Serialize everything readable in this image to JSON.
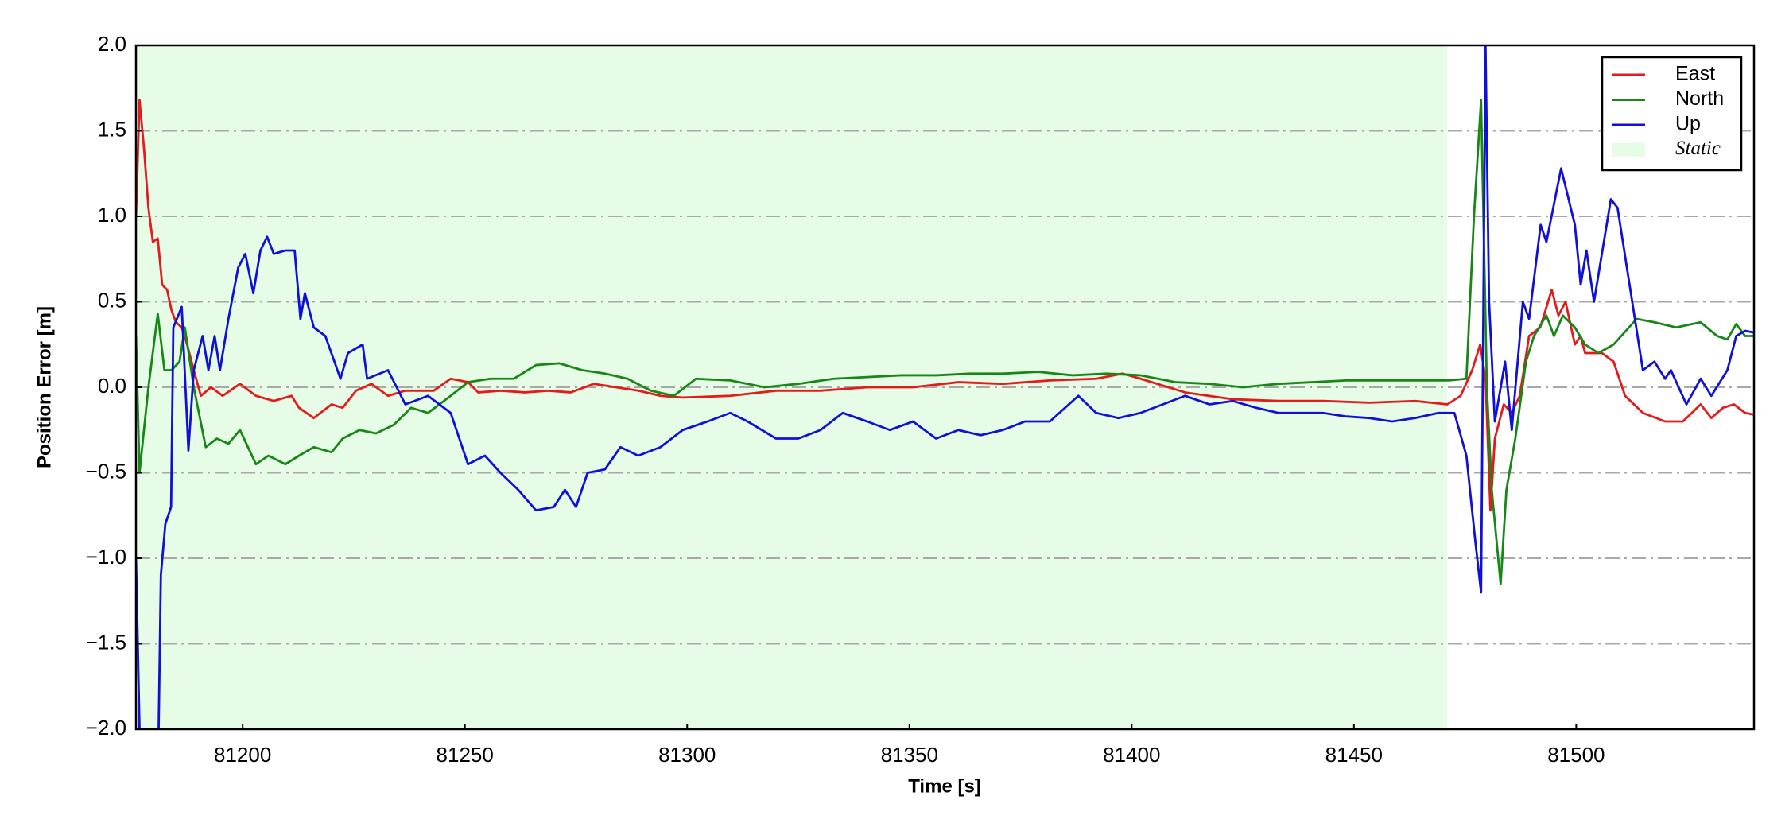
{
  "chart_data": {
    "type": "line",
    "xlabel": "Time [s]",
    "ylabel": "Position Error [m]",
    "xlim": [
      81176,
      81540
    ],
    "ylim": [
      -2,
      2
    ],
    "xticks": [
      81200,
      81250,
      81300,
      81350,
      81400,
      81450,
      81500
    ],
    "yticks": [
      {
        "value": -2,
        "label": "−2.0"
      },
      {
        "value": -1.5,
        "label": "−1.5"
      },
      {
        "value": -1,
        "label": "−1.0"
      },
      {
        "value": -0.5,
        "label": "−0.5"
      },
      {
        "value": 0,
        "label": "0.0"
      },
      0.5,
      {
        "value": 1,
        "label": "1.0"
      },
      1.5,
      {
        "value": 2,
        "label": "2.0"
      }
    ],
    "grid": true,
    "legend": "upper right",
    "shaded_region": {
      "name": "Static",
      "start": 81176,
      "end": 81471,
      "color": "#e6fce6"
    },
    "series": [
      {
        "name": "East",
        "color": "#e41a1c",
        "x": [
          81176,
          81176.8,
          81177.8,
          81178.8,
          81179.8,
          81180.9,
          81181.9,
          81183,
          81184,
          81185,
          81186.3,
          81187.5,
          81189,
          81190.6,
          81192.9,
          81195.5,
          81199.4,
          81203,
          81207,
          81211,
          81212.7,
          81216,
          81220,
          81222.5,
          81225.5,
          81229,
          81232.7,
          81236.6,
          81243,
          81246.8,
          81250.7,
          81253,
          81258,
          81263.5,
          81268.7,
          81273.8,
          81279,
          81284,
          81289,
          81294,
          81299,
          81309.7,
          81320,
          81330,
          81340.5,
          81350.8,
          81361,
          81371,
          81381.6,
          81392,
          81398,
          81402,
          81412,
          81422.7,
          81433,
          81443,
          81453.5,
          81463.7,
          81471,
          81474,
          81476.6,
          81478.4,
          81479.6,
          81480.7,
          81481.7,
          81483.7,
          81485.5,
          81487.3,
          81489.4,
          81491.9,
          81494.5,
          81496,
          81497.6,
          81499.7,
          81501,
          81502,
          81505.8,
          81508.4,
          81511,
          81515,
          81520,
          81524,
          81528,
          81530.4,
          81533,
          81535.5,
          81538,
          81540
        ],
        "values": [
          1.0,
          1.68,
          1.4,
          1.05,
          0.85,
          0.87,
          0.6,
          0.57,
          0.45,
          0.38,
          0.35,
          0.25,
          0.1,
          -0.05,
          0.0,
          -0.05,
          0.02,
          -0.05,
          -0.08,
          -0.05,
          -0.12,
          -0.18,
          -0.1,
          -0.12,
          -0.02,
          0.02,
          -0.05,
          -0.02,
          -0.02,
          0.05,
          0.03,
          -0.03,
          -0.02,
          -0.03,
          -0.02,
          -0.03,
          0.02,
          0.0,
          -0.02,
          -0.05,
          -0.06,
          -0.05,
          -0.02,
          -0.02,
          0.0,
          0.0,
          0.03,
          0.02,
          0.04,
          0.05,
          0.08,
          0.05,
          -0.03,
          -0.07,
          -0.08,
          -0.08,
          -0.09,
          -0.08,
          -0.1,
          -0.05,
          0.1,
          0.25,
          0.05,
          -0.72,
          -0.3,
          -0.1,
          -0.15,
          -0.05,
          0.3,
          0.35,
          0.57,
          0.42,
          0.5,
          0.25,
          0.3,
          0.2,
          0.2,
          0.15,
          -0.05,
          -0.15,
          -0.2,
          -0.2,
          -0.1,
          -0.18,
          -0.12,
          -0.1,
          -0.15,
          -0.16
        ]
      },
      {
        "name": "North",
        "color": "#188718",
        "x": [
          81176,
          81176.8,
          81178.8,
          81180.9,
          81182.4,
          81184,
          81185.8,
          81187,
          81189,
          81191.7,
          81194.2,
          81196.8,
          81199.4,
          81203,
          81205.8,
          81209.6,
          81212.7,
          81216,
          81220,
          81222.5,
          81226.3,
          81230,
          81234,
          81237.9,
          81241.7,
          81246.8,
          81250.7,
          81255.8,
          81261,
          81266,
          81271.2,
          81276.4,
          81281.5,
          81286.6,
          81291.8,
          81297,
          81302,
          81309.7,
          81317.4,
          81325,
          81333,
          81340.5,
          81348,
          81356,
          81363.6,
          81371,
          81379,
          81386.7,
          81394.4,
          81402,
          81409.8,
          81417.5,
          81425,
          81433,
          81440.6,
          81448.3,
          81456,
          81463.7,
          81471.4,
          81475.3,
          81477,
          81478.6,
          81479.9,
          81481,
          81483,
          81484.3,
          81486.3,
          81488.7,
          81490.5,
          81493.3,
          81495,
          81497,
          81499.7,
          81502,
          81505,
          81508.4,
          81513.6,
          81517.6,
          81522.5,
          81528,
          81531.7,
          81534,
          81536,
          81538,
          81540
        ],
        "values": [
          0.3,
          -0.5,
          0.0,
          0.43,
          0.1,
          0.1,
          0.15,
          0.35,
          0.0,
          -0.35,
          -0.3,
          -0.33,
          -0.25,
          -0.45,
          -0.4,
          -0.45,
          -0.4,
          -0.35,
          -0.38,
          -0.3,
          -0.25,
          -0.27,
          -0.22,
          -0.12,
          -0.15,
          -0.05,
          0.03,
          0.05,
          0.05,
          0.13,
          0.14,
          0.1,
          0.08,
          0.05,
          -0.02,
          -0.05,
          0.05,
          0.04,
          0.0,
          0.02,
          0.05,
          0.06,
          0.07,
          0.07,
          0.08,
          0.08,
          0.09,
          0.07,
          0.08,
          0.07,
          0.03,
          0.02,
          0.0,
          0.02,
          0.03,
          0.04,
          0.04,
          0.04,
          0.04,
          0.05,
          1.0,
          1.68,
          0.0,
          -0.6,
          -1.15,
          -0.6,
          -0.3,
          0.15,
          0.3,
          0.42,
          0.3,
          0.42,
          0.35,
          0.25,
          0.2,
          0.25,
          0.4,
          0.38,
          0.35,
          0.38,
          0.3,
          0.28,
          0.37,
          0.3,
          0.3
        ]
      },
      {
        "name": "Up",
        "color": "#1010d8",
        "x": [
          81176,
          81176.8,
          81178.3,
          81180.1,
          81181.1,
          81181.6,
          81182.6,
          81183.9,
          81184.4,
          81186.3,
          81187.8,
          81189,
          81191,
          81192.3,
          81193.7,
          81194.9,
          81196.8,
          81199,
          81200.6,
          81202.4,
          81204,
          81205.5,
          81207,
          81209.6,
          81211.7,
          81213,
          81214,
          81216,
          81218.6,
          81222,
          81223.7,
          81227,
          81228,
          81232.7,
          81236.6,
          81241.7,
          81246.8,
          81250.7,
          81254.5,
          81258,
          81262,
          81266,
          81270,
          81272.5,
          81275,
          81277.6,
          81281.5,
          81285,
          81289,
          81294,
          81299,
          81304.6,
          81309.7,
          81313.6,
          81320,
          81325,
          81330,
          81335,
          81340.5,
          81345.6,
          81350.8,
          81356,
          81361,
          81366,
          81371,
          81376,
          81381.6,
          81388,
          81392,
          81397,
          81402,
          81407,
          81412,
          81417.5,
          81422.7,
          81428,
          81433,
          81438,
          81443,
          81448,
          81453.5,
          81458.6,
          81463.7,
          81469,
          81472.6,
          81475.3,
          81477.3,
          81478.6,
          81479.6,
          81480.4,
          81481.7,
          81484,
          81485.5,
          81488,
          81489.4,
          81492,
          81493.3,
          81496.6,
          81499.7,
          81501,
          81502.3,
          81504,
          81507.8,
          81509.3,
          81512.6,
          81515,
          81517.6,
          81520,
          81521.3,
          81524.8,
          81528,
          81530.4,
          81534,
          81536,
          81538,
          81540
        ],
        "values": [
          -1.0,
          -2.0,
          -2.0,
          -2.0,
          -2.0,
          -1.1,
          -0.8,
          -0.7,
          0.35,
          0.47,
          -0.37,
          0.1,
          0.3,
          0.1,
          0.3,
          0.1,
          0.4,
          0.7,
          0.78,
          0.55,
          0.8,
          0.88,
          0.78,
          0.8,
          0.8,
          0.4,
          0.55,
          0.35,
          0.3,
          0.05,
          0.2,
          0.25,
          0.05,
          0.1,
          -0.1,
          -0.05,
          -0.15,
          -0.45,
          -0.4,
          -0.5,
          -0.6,
          -0.72,
          -0.7,
          -0.6,
          -0.7,
          -0.5,
          -0.48,
          -0.35,
          -0.4,
          -0.35,
          -0.25,
          -0.2,
          -0.15,
          -0.2,
          -0.3,
          -0.3,
          -0.25,
          -0.15,
          -0.2,
          -0.25,
          -0.2,
          -0.3,
          -0.25,
          -0.28,
          -0.25,
          -0.2,
          -0.2,
          -0.05,
          -0.15,
          -0.18,
          -0.15,
          -0.1,
          -0.05,
          -0.1,
          -0.08,
          -0.12,
          -0.15,
          -0.15,
          -0.15,
          -0.17,
          -0.18,
          -0.2,
          -0.18,
          -0.15,
          -0.15,
          -0.4,
          -0.9,
          -1.2,
          2.0,
          0.5,
          -0.2,
          0.15,
          -0.25,
          0.5,
          0.4,
          0.95,
          0.85,
          1.28,
          0.95,
          0.6,
          0.8,
          0.5,
          1.1,
          1.05,
          0.5,
          0.1,
          0.15,
          0.05,
          0.1,
          -0.1,
          0.05,
          -0.05,
          0.1,
          0.3,
          0.33,
          0.32
        ]
      }
    ]
  }
}
